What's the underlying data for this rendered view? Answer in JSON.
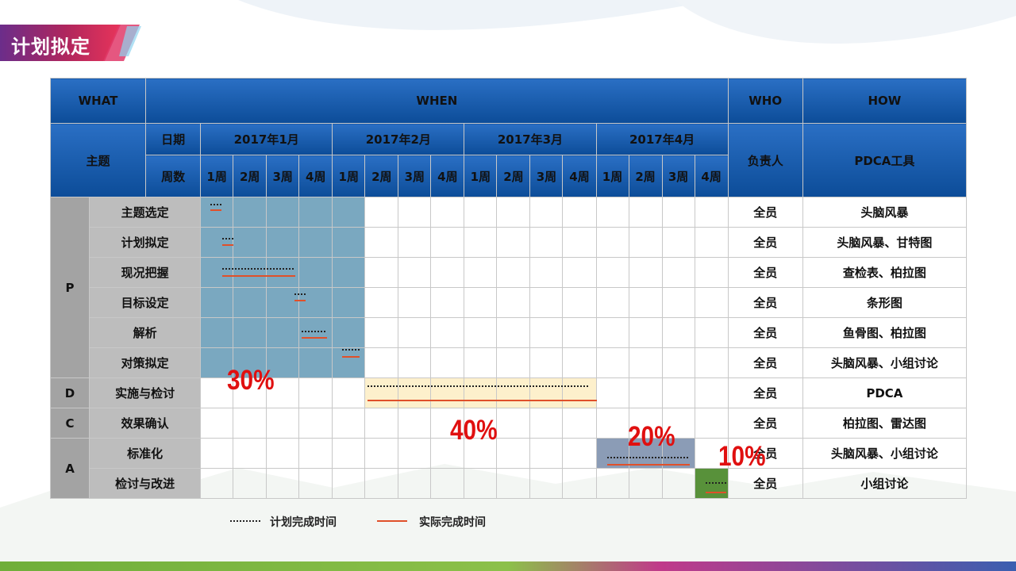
{
  "title": "计划拟定",
  "header": {
    "what": "WHAT",
    "when": "WHEN",
    "who": "WHO",
    "how": "HOW",
    "topic": "主题",
    "date": "日期",
    "weeks_label": "周数",
    "owner": "负责人",
    "tool": "PDCA工具",
    "months": [
      "2017年1月",
      "2017年2月",
      "2017年3月",
      "2017年4月"
    ],
    "weeks": [
      "1周",
      "2周",
      "3周",
      "4周"
    ]
  },
  "phases": [
    "P",
    "D",
    "C",
    "A"
  ],
  "rows": [
    {
      "topic": "主题选定",
      "owner": "全员",
      "tool": "头脑风暴"
    },
    {
      "topic": "计划拟定",
      "owner": "全员",
      "tool": "头脑风暴、甘特图"
    },
    {
      "topic": "现况把握",
      "owner": "全员",
      "tool": "查检表、柏拉图"
    },
    {
      "topic": "目标设定",
      "owner": "全员",
      "tool": "条形图"
    },
    {
      "topic": "解析",
      "owner": "全员",
      "tool": "鱼骨图、柏拉图"
    },
    {
      "topic": "对策拟定",
      "owner": "全员",
      "tool": "头脑风暴、小组讨论"
    },
    {
      "topic": "实施与检讨",
      "owner": "全员",
      "tool": "PDCA"
    },
    {
      "topic": "效果确认",
      "owner": "全员",
      "tool": "柏拉图、雷达图"
    },
    {
      "topic": "标准化",
      "owner": "全员",
      "tool": "头脑风暴、小组讨论"
    },
    {
      "topic": "检讨与改进",
      "owner": "全员",
      "tool": "小组讨论"
    }
  ],
  "percentages": [
    "30%",
    "40%",
    "20%",
    "10%"
  ],
  "legend": {
    "plan": "计划完成时间",
    "actual": "实际完成时间"
  },
  "colors": {
    "header_blue": "#0c4c98",
    "plan_phase_fill": "#7aa8c0",
    "do_phase_fill": "#fdf0cc",
    "act_phase_fill": "#8b9cb6",
    "review_fill": "#58913a",
    "actual_line": "#e0502a",
    "percent_text": "#e01010"
  }
}
